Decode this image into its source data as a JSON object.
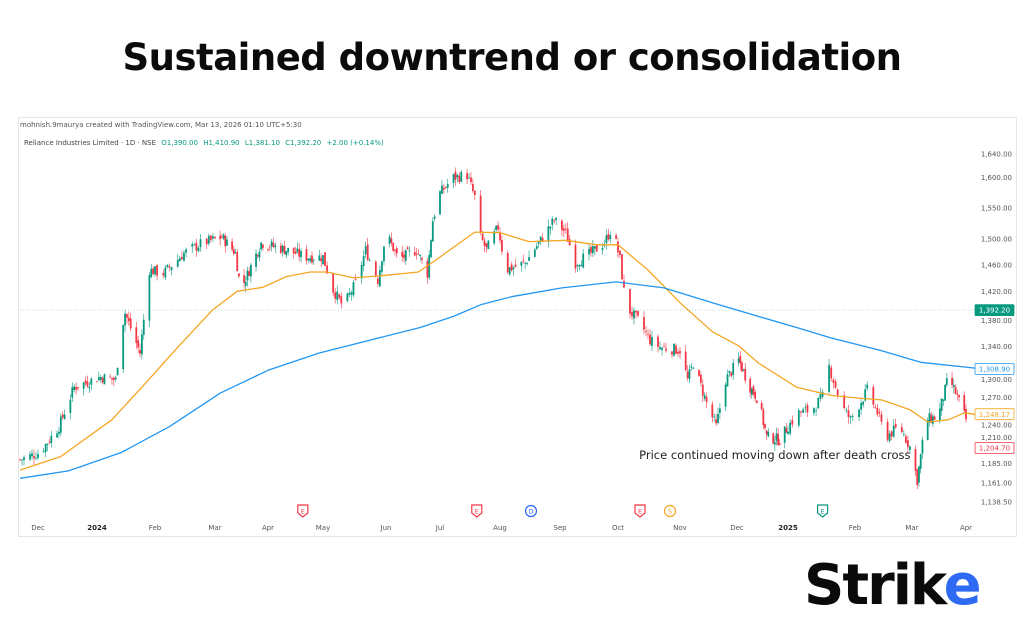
{
  "title": "Sustained downtrend or consolidation",
  "attribution": "mohnish.9maurya created with TradingView.com, Mar 13, 2026 01:10 UTC+5:30",
  "legend": {
    "symbol": "Reliance Industries Limited · 1D · NSE",
    "open": "O1,390.00",
    "high": "H1,410.90",
    "low": "L1,381.10",
    "close": "C1,392.20",
    "change": "+2.00 (+0.14%)"
  },
  "logo": {
    "text_main": "Strik",
    "text_accent": "e",
    "accent_color": "#2f6bf2"
  },
  "colors": {
    "up": "#089981",
    "down": "#f23645",
    "ma_short": "#f5a623",
    "ma_long": "#2196f3",
    "last_price": "#089981"
  },
  "chart_data": {
    "type": "candlestick",
    "y_scale": "log",
    "ylim": [
      1138.5,
      1640
    ],
    "grid": false,
    "y_ticks": [
      "1,640.00",
      "1,600.00",
      "1,550.00",
      "1,500.00",
      "1,460.00",
      "1,420.00",
      "1,380.00",
      "1,340.00",
      "1,300.00",
      "1,270.00",
      "1,240.00",
      "1,210.00",
      "1,185.00",
      "1,161.00",
      "1,138.50"
    ],
    "y_tick_values": [
      1640,
      1600,
      1550,
      1500,
      1460,
      1420,
      1380,
      1340,
      1300,
      1270,
      1240,
      1210,
      1185,
      1161,
      1138.5
    ],
    "x_ticks": [
      "Dec",
      "2024",
      "Feb",
      "Mar",
      "Apr",
      "May",
      "Jun",
      "Jul",
      "Aug",
      "Sep",
      "Oct",
      "Nov",
      "Dec",
      "2025",
      "Feb",
      "Mar",
      "Apr"
    ],
    "x_tick_dates": [
      "2023-12-01",
      "2024-01-01",
      "2024-02-01",
      "2024-03-01",
      "2024-04-01",
      "2024-05-01",
      "2024-06-01",
      "2024-07-01",
      "2024-08-01",
      "2024-09-01",
      "2024-10-01",
      "2024-11-01",
      "2024-12-01",
      "2025-01-01",
      "2025-02-01",
      "2025-03-01",
      "2025-04-01"
    ],
    "price_closes": [
      [
        "2023-11-22",
        1190
      ],
      [
        "2023-12-02",
        1199
      ],
      [
        "2023-12-12",
        1232
      ],
      [
        "2023-12-20",
        1284
      ],
      [
        "2024-01-03",
        1298
      ],
      [
        "2024-01-11",
        1294
      ],
      [
        "2024-01-14",
        1364
      ],
      [
        "2024-01-16",
        1388
      ],
      [
        "2024-01-24",
        1331
      ],
      [
        "2024-01-29",
        1452
      ],
      [
        "2024-02-05",
        1447
      ],
      [
        "2024-02-15",
        1478
      ],
      [
        "2024-02-24",
        1494
      ],
      [
        "2024-03-05",
        1503
      ],
      [
        "2024-03-13",
        1478
      ],
      [
        "2024-03-16",
        1422
      ],
      [
        "2024-03-28",
        1494
      ],
      [
        "2024-04-11",
        1483
      ],
      [
        "2024-04-22",
        1472
      ],
      [
        "2024-05-01",
        1472
      ],
      [
        "2024-05-06",
        1422
      ],
      [
        "2024-05-11",
        1397
      ],
      [
        "2024-05-17",
        1432
      ],
      [
        "2024-05-22",
        1483
      ],
      [
        "2024-05-28",
        1437
      ],
      [
        "2024-06-01",
        1510
      ],
      [
        "2024-06-08",
        1468
      ],
      [
        "2024-06-18",
        1483
      ],
      [
        "2024-06-24",
        1447
      ],
      [
        "2024-06-27",
        1530
      ],
      [
        "2024-07-01",
        1574
      ],
      [
        "2024-07-08",
        1600
      ],
      [
        "2024-07-15",
        1604
      ],
      [
        "2024-07-20",
        1558
      ],
      [
        "2024-07-22",
        1503
      ],
      [
        "2024-07-25",
        1483
      ],
      [
        "2024-07-31",
        1519
      ],
      [
        "2024-08-04",
        1452
      ],
      [
        "2024-08-14",
        1463
      ],
      [
        "2024-08-22",
        1498
      ],
      [
        "2024-08-29",
        1530
      ],
      [
        "2024-09-04",
        1510
      ],
      [
        "2024-09-09",
        1463
      ],
      [
        "2024-09-17",
        1478
      ],
      [
        "2024-09-24",
        1494
      ],
      [
        "2024-09-28",
        1519
      ],
      [
        "2024-10-02",
        1468
      ],
      [
        "2024-10-05",
        1397
      ],
      [
        "2024-10-12",
        1374
      ],
      [
        "2024-10-17",
        1349
      ],
      [
        "2024-10-22",
        1339
      ],
      [
        "2024-11-01",
        1335
      ],
      [
        "2024-11-05",
        1294
      ],
      [
        "2024-11-08",
        1317
      ],
      [
        "2024-11-15",
        1263
      ],
      [
        "2024-11-20",
        1232
      ],
      [
        "2024-11-25",
        1294
      ],
      [
        "2024-12-02",
        1321
      ],
      [
        "2024-12-09",
        1284
      ],
      [
        "2024-12-14",
        1267
      ],
      [
        "2024-12-19",
        1219
      ],
      [
        "2024-12-27",
        1215
      ],
      [
        "2025-01-06",
        1250
      ],
      [
        "2025-01-12",
        1254
      ],
      [
        "2025-01-17",
        1271
      ],
      [
        "2025-01-20",
        1312
      ],
      [
        "2025-01-26",
        1258
      ],
      [
        "2025-01-30",
        1241
      ],
      [
        "2025-02-07",
        1280
      ],
      [
        "2025-02-12",
        1250
      ],
      [
        "2025-02-16",
        1219
      ],
      [
        "2025-02-23",
        1232
      ],
      [
        "2025-02-28",
        1206
      ],
      [
        "2025-03-04",
        1165
      ],
      [
        "2025-03-09",
        1241
      ],
      [
        "2025-03-16",
        1245
      ],
      [
        "2025-03-22",
        1298
      ],
      [
        "2025-03-27",
        1271
      ],
      [
        "2025-04-01",
        1241
      ]
    ],
    "ma_short": [
      [
        "2023-11-22",
        1177
      ],
      [
        "2023-12-13",
        1194
      ],
      [
        "2024-01-09",
        1241
      ],
      [
        "2024-01-25",
        1284
      ],
      [
        "2024-02-12",
        1339
      ],
      [
        "2024-02-29",
        1393
      ],
      [
        "2024-03-14",
        1420
      ],
      [
        "2024-03-29",
        1426
      ],
      [
        "2024-04-11",
        1442
      ],
      [
        "2024-04-24",
        1449
      ],
      [
        "2024-05-03",
        1449
      ],
      [
        "2024-05-16",
        1440
      ],
      [
        "2024-06-01",
        1444
      ],
      [
        "2024-06-19",
        1449
      ],
      [
        "2024-06-29",
        1468
      ],
      [
        "2024-07-19",
        1511
      ],
      [
        "2024-08-01",
        1510
      ],
      [
        "2024-08-16",
        1496
      ],
      [
        "2024-09-04",
        1498
      ],
      [
        "2024-09-20",
        1491
      ],
      [
        "2024-10-01",
        1491
      ],
      [
        "2024-10-16",
        1452
      ],
      [
        "2024-11-01",
        1403
      ],
      [
        "2024-11-18",
        1361
      ],
      [
        "2024-12-02",
        1341
      ],
      [
        "2024-12-14",
        1317
      ],
      [
        "2025-01-05",
        1284
      ],
      [
        "2025-01-21",
        1273
      ],
      [
        "2025-02-04",
        1269
      ],
      [
        "2025-02-14",
        1267
      ],
      [
        "2025-02-28",
        1254
      ],
      [
        "2025-03-10",
        1238
      ],
      [
        "2025-03-22",
        1241
      ],
      [
        "2025-03-31",
        1250
      ],
      [
        "2025-04-02",
        1248
      ]
    ],
    "ma_long": [
      [
        "2023-11-22",
        1167
      ],
      [
        "2023-12-17",
        1176
      ],
      [
        "2024-01-14",
        1199
      ],
      [
        "2024-02-08",
        1232
      ],
      [
        "2024-03-04",
        1276
      ],
      [
        "2024-04-01",
        1307
      ],
      [
        "2024-04-29",
        1331
      ],
      [
        "2024-05-24",
        1349
      ],
      [
        "2024-06-20",
        1367
      ],
      [
        "2024-07-08",
        1383
      ],
      [
        "2024-07-22",
        1400
      ],
      [
        "2024-08-07",
        1412
      ],
      [
        "2024-09-02",
        1425
      ],
      [
        "2024-09-30",
        1434
      ],
      [
        "2024-10-24",
        1425
      ],
      [
        "2024-11-18",
        1403
      ],
      [
        "2024-12-14",
        1383
      ],
      [
        "2025-01-05",
        1367
      ],
      [
        "2025-01-21",
        1352
      ],
      [
        "2025-02-13",
        1335
      ],
      [
        "2025-03-06",
        1318
      ],
      [
        "2025-04-02",
        1310
      ]
    ],
    "price_labels": [
      {
        "text": "1,392.20",
        "value": 1392.2,
        "color": "#089981",
        "style": "filled"
      },
      {
        "text": "1,308.90",
        "value": 1308.9,
        "color": "#2196f3",
        "style": "outline"
      },
      {
        "text": "1,248.17",
        "value": 1248.17,
        "color": "#f5a623",
        "style": "outline"
      },
      {
        "text": "1,204.70",
        "value": 1204.7,
        "color": "#f23645",
        "style": "outline"
      }
    ],
    "last_price": 1392.2,
    "events": [
      {
        "date": "2024-04-20",
        "letter": "E",
        "color": "#f23645",
        "shape": "shield"
      },
      {
        "date": "2024-07-20",
        "letter": "E",
        "color": "#f23645",
        "shape": "shield"
      },
      {
        "date": "2024-08-17",
        "letter": "D",
        "color": "#2962ff",
        "shape": "circle"
      },
      {
        "date": "2024-10-12",
        "letter": "E",
        "color": "#f23645",
        "shape": "shield"
      },
      {
        "date": "2024-10-27",
        "letter": "S",
        "color": "#f5a623",
        "shape": "circle"
      },
      {
        "date": "2025-01-17",
        "letter": "E",
        "color": "#089981",
        "shape": "shield"
      }
    ],
    "annotation": {
      "text": "Price continued moving down after death cross",
      "date": "2024-12-24",
      "value": 1196
    }
  }
}
